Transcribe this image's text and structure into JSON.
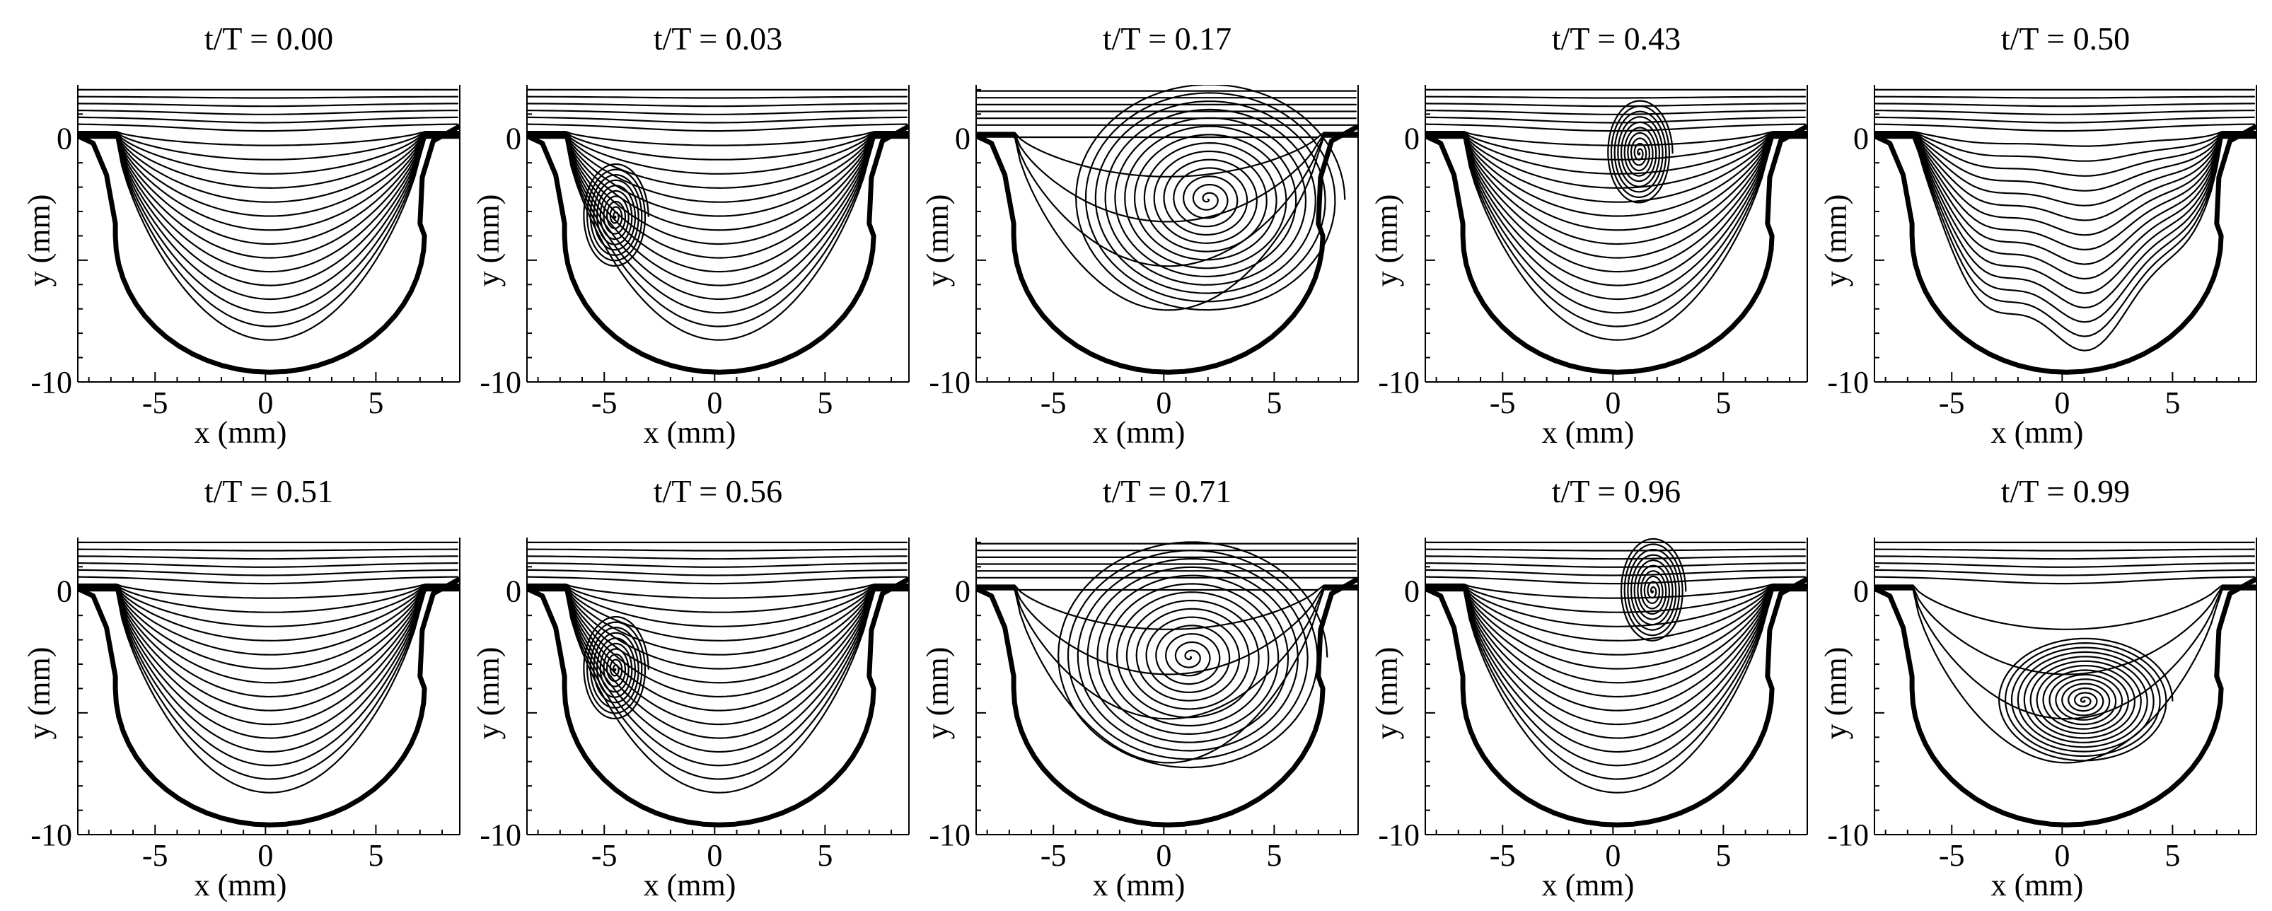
{
  "figure": {
    "x_label": "x (mm)",
    "y_label": "y (mm)",
    "x_ticks": [
      "-5",
      "0",
      "5"
    ],
    "y_ticks": [
      "0",
      "-10"
    ],
    "x_range": [
      -8.5,
      8.8
    ],
    "y_range": [
      -10,
      2.2
    ],
    "panels": [
      {
        "title": "t/T = 0.00",
        "pattern": "through",
        "vortex": null
      },
      {
        "title": "t/T = 0.03",
        "pattern": "through_vortex",
        "vortex": [
          -4.5,
          -3.2
        ]
      },
      {
        "title": "t/T = 0.17",
        "pattern": "full_vortex",
        "vortex": [
          2.0,
          -2.5
        ]
      },
      {
        "title": "t/T = 0.43",
        "pattern": "through_vortex",
        "vortex": [
          1.2,
          -0.6
        ]
      },
      {
        "title": "t/T = 0.50",
        "pattern": "deformed",
        "vortex": null
      },
      {
        "title": "t/T = 0.51",
        "pattern": "through",
        "vortex": null
      },
      {
        "title": "t/T = 0.56",
        "pattern": "through_vortex",
        "vortex": [
          -4.5,
          -3.2
        ]
      },
      {
        "title": "t/T = 0.71",
        "pattern": "full_vortex",
        "vortex": [
          1.2,
          -2.7
        ]
      },
      {
        "title": "t/T = 0.96",
        "pattern": "through_vortex",
        "vortex": [
          1.8,
          0.0
        ]
      },
      {
        "title": "t/T = 0.99",
        "pattern": "full_vortex_low",
        "vortex": [
          1.0,
          -4.5
        ]
      }
    ]
  }
}
